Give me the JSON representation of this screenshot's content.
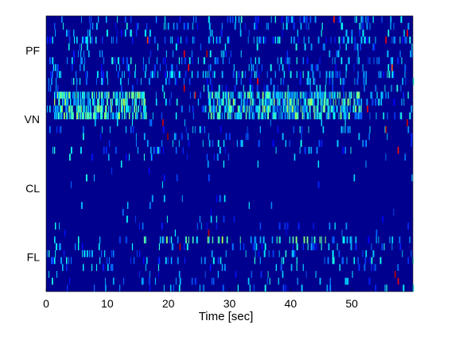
{
  "chart_data": {
    "type": "heatmap",
    "title": "",
    "xlabel": "Time [sec]",
    "ylabel": "",
    "xlim": [
      0,
      60
    ],
    "x_ticks": [
      0,
      10,
      20,
      30,
      40,
      50
    ],
    "x_tick_labels": [
      "0",
      "10",
      "20",
      "30",
      "40",
      "50"
    ],
    "y_categories": [
      "PF",
      "VN",
      "CL",
      "FL"
    ],
    "colormap": "jet",
    "background_color": "#00008f",
    "grid": false,
    "legend": "none",
    "rows_per_group": 10,
    "groups": [
      {
        "name": "PF",
        "activity": "sparse-moderate",
        "hot_times_sec": [
          16.5,
          22.5,
          23.2,
          26.2,
          34.5,
          47.0,
          55.5,
          56.5,
          59.0
        ]
      },
      {
        "name": "VN",
        "activity": "dense bursts in upper rows",
        "burst_intervals_sec": [
          [
            1.2,
            16.5
          ],
          [
            26.5,
            51.5
          ]
        ],
        "hot_times_sec": [
          19.0,
          19.8,
          22.5,
          24.3,
          52.5,
          55.5,
          57.5,
          59.0
        ]
      },
      {
        "name": "CL",
        "activity": "very sparse",
        "hot_times_sec": []
      },
      {
        "name": "FL",
        "activity": "sparse with burst in top row",
        "burst_intervals_sec": [
          [
            13.0,
            50.0
          ]
        ],
        "hot_times_sec": [
          21.8,
          26.5,
          57.0,
          57.5
        ]
      }
    ]
  }
}
